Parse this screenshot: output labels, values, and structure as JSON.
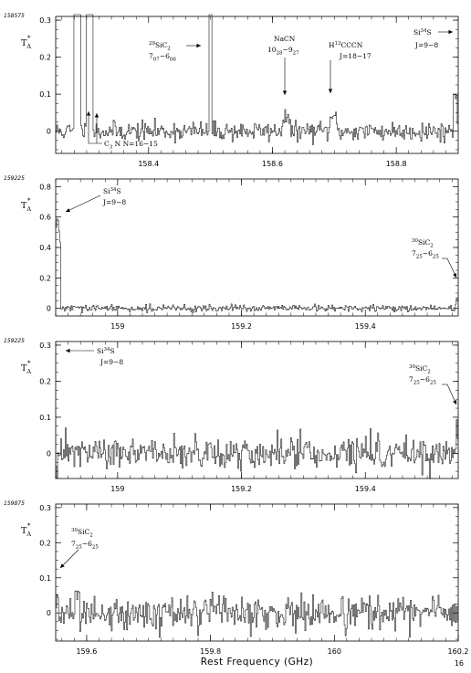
{
  "page_number": "16",
  "chart_data": [
    {
      "type": "line",
      "scan_id": "158575",
      "ylabel": "T",
      "ylabel_sub": "A",
      "ylabel_sup": "*",
      "xlim": [
        158.25,
        158.9
      ],
      "ylim": [
        -0.06,
        0.31
      ],
      "xticks": [
        158.4,
        158.6,
        158.8
      ],
      "xtick_labels": [
        "158.4",
        "158.6",
        "158.8"
      ],
      "yticks": [
        0,
        0.1,
        0.2,
        0.3
      ],
      "ytick_labels": [
        "0",
        "0.1",
        "0.2",
        "0.3"
      ],
      "noise_rms": 0.013,
      "features": [
        {
          "x": 158.285,
          "width": 0.005,
          "height": 0.5
        },
        {
          "x": 158.305,
          "width": 0.005,
          "height": 0.5
        },
        {
          "x": 158.5,
          "width": 0.002,
          "height": 0.5
        },
        {
          "x": 158.621,
          "width": 0.006,
          "height": 0.04
        },
        {
          "x": 158.698,
          "width": 0.006,
          "height": 0.045
        },
        {
          "x": 158.895,
          "width": 0.003,
          "height": 0.12
        }
      ],
      "annotations": [
        {
          "text": "C3N N=16-15"
        },
        {
          "text": "29SiC2 7(07)-6(06)"
        },
        {
          "text": "NaCN 10(28)-9(27)"
        },
        {
          "text": "H13CCCN J=18-17"
        },
        {
          "text": "Si34S J=9-8"
        }
      ]
    },
    {
      "type": "line",
      "scan_id": "159225",
      "ylabel": "T",
      "ylabel_sub": "A",
      "ylabel_sup": "*",
      "xlim": [
        158.9,
        159.55
      ],
      "ylim": [
        -0.05,
        0.85
      ],
      "xticks": [
        159.0,
        159.2,
        159.4
      ],
      "xtick_labels": [
        "159",
        "159.2",
        "159.4"
      ],
      "yticks": [
        0,
        0.2,
        0.4,
        0.6,
        0.8
      ],
      "ytick_labels": [
        "0",
        "0.2",
        "0.4",
        "0.6",
        "0.8"
      ],
      "noise_rms": 0.011,
      "features": [
        {
          "x": 158.903,
          "width": 0.004,
          "height": 0.62
        },
        {
          "x": 159.548,
          "width": 0.002,
          "height": 0.06
        }
      ],
      "annotations": [
        {
          "text": "Si34S J=9-8"
        },
        {
          "text": "30SiC2 7(25)-6(25)"
        }
      ]
    },
    {
      "type": "line",
      "scan_id": "159225",
      "ylabel": "T",
      "ylabel_sub": "A",
      "ylabel_sup": "*",
      "xlim": [
        158.9,
        159.55
      ],
      "ylim": [
        -0.07,
        0.31
      ],
      "xticks": [
        159.0,
        159.2,
        159.4
      ],
      "xtick_labels": [
        "159",
        "159.2",
        "159.4"
      ],
      "yticks": [
        0,
        0.1,
        0.2,
        0.3
      ],
      "ytick_labels": [
        "0",
        "0.1",
        "0.2",
        "0.3"
      ],
      "noise_rms": 0.022,
      "features": [
        {
          "x": 159.548,
          "width": 0.002,
          "height": 0.06
        }
      ],
      "annotations": [
        {
          "text": "Si34S J=9-8"
        },
        {
          "text": "30SiC2 7(25)-6(25)"
        }
      ]
    },
    {
      "type": "line",
      "scan_id": "159875",
      "ylabel": "T",
      "ylabel_sub": "A",
      "ylabel_sup": "*",
      "xlim": [
        159.55,
        160.2
      ],
      "ylim": [
        -0.08,
        0.31
      ],
      "xticks": [
        159.6,
        159.8,
        160.0,
        160.2
      ],
      "xtick_labels": [
        "159.6",
        "159.8",
        "160",
        "160.2"
      ],
      "yticks": [
        0,
        0.1,
        0.2,
        0.3
      ],
      "ytick_labels": [
        "0",
        "0.1",
        "0.2",
        "0.3"
      ],
      "noise_rms": 0.025,
      "features": [
        {
          "x": 159.553,
          "width": 0.002,
          "height": 0.06
        }
      ],
      "annotations": [
        {
          "text": "30SiC2 7(25)-6(25)"
        }
      ],
      "xlabel": "Rest Frequency (GHz)"
    }
  ]
}
